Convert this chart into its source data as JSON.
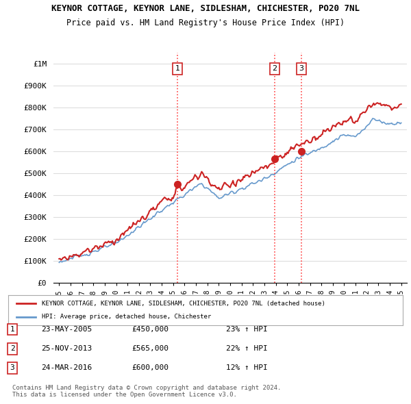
{
  "title": "KEYNOR COTTAGE, KEYNOR LANE, SIDLESHAM, CHICHESTER, PO20 7NL",
  "subtitle": "Price paid vs. HM Land Registry's House Price Index (HPI)",
  "background_color": "#ffffff",
  "grid_color": "#dddddd",
  "ylim": [
    0,
    1050000
  ],
  "yticks": [
    0,
    100000,
    200000,
    300000,
    400000,
    500000,
    600000,
    700000,
    800000,
    900000,
    1000000
  ],
  "ytick_labels": [
    "£0",
    "£100K",
    "£200K",
    "£300K",
    "£400K",
    "£500K",
    "£600K",
    "£700K",
    "£800K",
    "£900K",
    "£1M"
  ],
  "x_start_year": 1995,
  "x_end_year": 2025,
  "sale_dates": [
    2005.38,
    2013.9,
    2016.23
  ],
  "sale_prices": [
    450000,
    565000,
    600000
  ],
  "sale_labels": [
    "1",
    "2",
    "3"
  ],
  "vline_color": "#ff4444",
  "vline_style": ":",
  "hpi_line_color": "#6699cc",
  "property_line_color": "#cc2222",
  "legend_property_label": "KEYNOR COTTAGE, KEYNOR LANE, SIDLESHAM, CHICHESTER, PO20 7NL (detached house)",
  "legend_hpi_label": "HPI: Average price, detached house, Chichester",
  "table_data": [
    {
      "num": "1",
      "date": "23-MAY-2005",
      "price": "£450,000",
      "hpi": "23% ↑ HPI"
    },
    {
      "num": "2",
      "date": "25-NOV-2013",
      "price": "£565,000",
      "hpi": "22% ↑ HPI"
    },
    {
      "num": "3",
      "date": "24-MAR-2016",
      "price": "£600,000",
      "hpi": "12% ↑ HPI"
    }
  ],
  "footnote": "Contains HM Land Registry data © Crown copyright and database right 2024.\nThis data is licensed under the Open Government Licence v3.0."
}
